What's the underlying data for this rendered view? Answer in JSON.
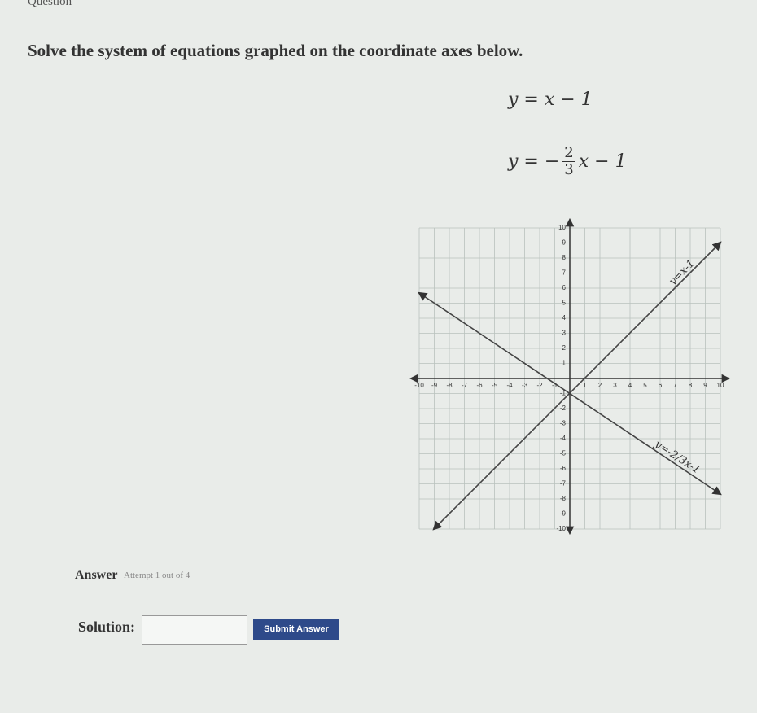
{
  "header": {
    "title": "Question"
  },
  "question": {
    "prompt": "Solve the system of equations graphed on the coordinate axes below.",
    "equation_1": "y = x − 1",
    "equation_2": {
      "left": "y = −",
      "numerator": "2",
      "denominator": "3",
      "right": "x − 1"
    }
  },
  "graph": {
    "xlim": [
      -10,
      10
    ],
    "ylim": [
      -10,
      10
    ],
    "xticks": [
      -10,
      -9,
      -8,
      -7,
      -6,
      -5,
      -4,
      -3,
      -2,
      -1,
      1,
      2,
      3,
      4,
      5,
      6,
      7,
      8,
      9,
      10
    ],
    "yticks": [
      -10,
      -9,
      -8,
      -7,
      -6,
      -5,
      -4,
      -3,
      -2,
      -1,
      1,
      2,
      3,
      4,
      5,
      6,
      7,
      8,
      9,
      10
    ],
    "line_labels": [
      "y=x-1",
      "y=-2/3x-1"
    ]
  },
  "answer": {
    "title": "Answer",
    "attempt": "Attempt 1 out of 4",
    "solution_label": "Solution:",
    "submit": "Submit Answer"
  }
}
